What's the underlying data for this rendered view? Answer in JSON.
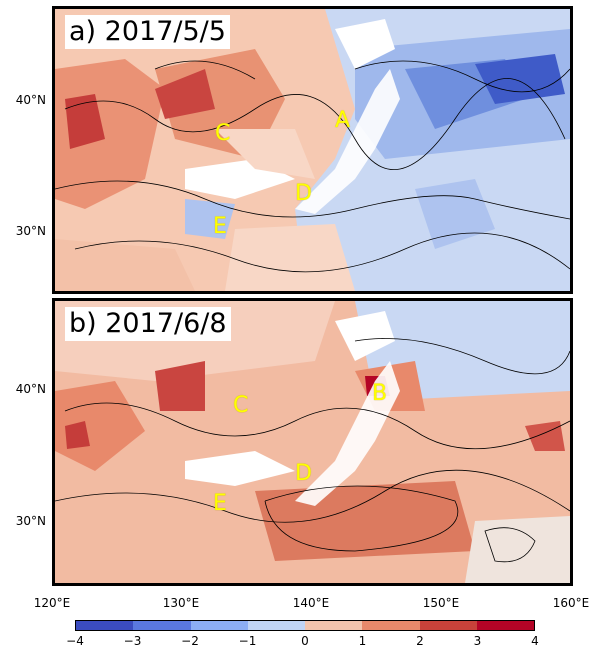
{
  "panels": [
    {
      "title": "a) 2017/5/5",
      "marks": [
        "A",
        "C",
        "D",
        "E"
      ]
    },
    {
      "title": "b) 2017/6/8",
      "marks": [
        "B",
        "C",
        "D",
        "E"
      ]
    }
  ],
  "y_ticks": [
    "40°N",
    "30°N"
  ],
  "x_ticks": [
    "120°E",
    "130°E",
    "140°E",
    "150°E",
    "160°E"
  ],
  "colorbar": {
    "ticks": [
      "−4",
      "−3",
      "−2",
      "−1",
      "0",
      "1",
      "2",
      "3",
      "4"
    ],
    "colors": [
      "#3b4cc0",
      "#5a78e0",
      "#8caef5",
      "#c0d4f5",
      "#e8e2dc",
      "#f3c4ad",
      "#e8896b",
      "#c8423a",
      "#b40426"
    ]
  }
}
